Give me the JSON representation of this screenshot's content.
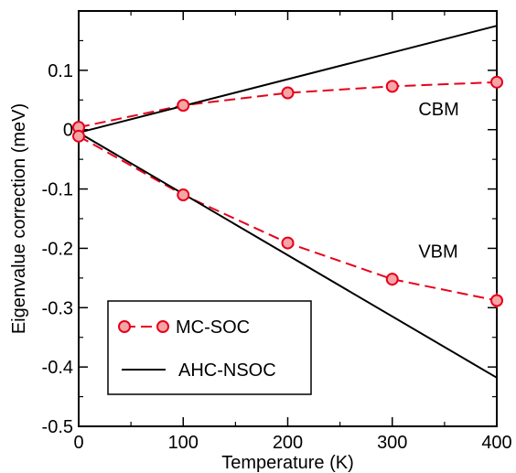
{
  "chart_data": {
    "type": "line",
    "xlabel": "Temperature (K)",
    "ylabel": "Eigenvalue correction (meV)",
    "xlim": [
      0,
      400
    ],
    "ylim": [
      -0.5,
      0.2
    ],
    "xticks": [
      0,
      100,
      200,
      300,
      400
    ],
    "xtick_labels": [
      "0",
      "100",
      "200",
      "300",
      "400"
    ],
    "yticks": [
      -0.5,
      -0.4,
      -0.3,
      -0.2,
      -0.1,
      0,
      0.1
    ],
    "ytick_labels": [
      "-0.5",
      "-0.4",
      "-0.3",
      "-0.2",
      "-0.1",
      "0",
      "0.1"
    ],
    "grid": false,
    "legend_position": "bottom-left",
    "series": [
      {
        "name": "MC-SOC",
        "branch": "CBM",
        "style": "dashed-circles",
        "color": "#e8001c",
        "marker_fill": "#f4a6a6",
        "x": [
          0,
          100,
          200,
          300,
          400
        ],
        "y": [
          0.004,
          0.041,
          0.062,
          0.073,
          0.08
        ],
        "yerr": [
          0.004,
          0.004,
          0.004,
          0.006,
          0.006
        ]
      },
      {
        "name": "MC-SOC",
        "branch": "VBM",
        "style": "dashed-circles",
        "color": "#e8001c",
        "marker_fill": "#f4a6a6",
        "x": [
          0,
          100,
          200,
          300,
          400
        ],
        "y": [
          -0.011,
          -0.11,
          -0.191,
          -0.252,
          -0.288
        ],
        "yerr": [
          0.004,
          0.005,
          0.007,
          0.011,
          0.013
        ]
      },
      {
        "name": "AHC-NSOC",
        "branch": "CBM",
        "style": "solid",
        "color": "#000000",
        "x": [
          0,
          400
        ],
        "y": [
          -0.005,
          0.175
        ]
      },
      {
        "name": "AHC-NSOC",
        "branch": "VBM",
        "style": "solid",
        "color": "#000000",
        "x": [
          0,
          400
        ],
        "y": [
          -0.005,
          -0.418
        ]
      }
    ],
    "annotations": [
      {
        "text": "CBM",
        "x": 325,
        "y": 0.035
      },
      {
        "text": "VBM",
        "x": 325,
        "y": -0.205
      }
    ],
    "legend": [
      {
        "label": "MC-SOC",
        "style": "dashed-circles"
      },
      {
        "label": "AHC-NSOC",
        "style": "solid"
      }
    ]
  }
}
